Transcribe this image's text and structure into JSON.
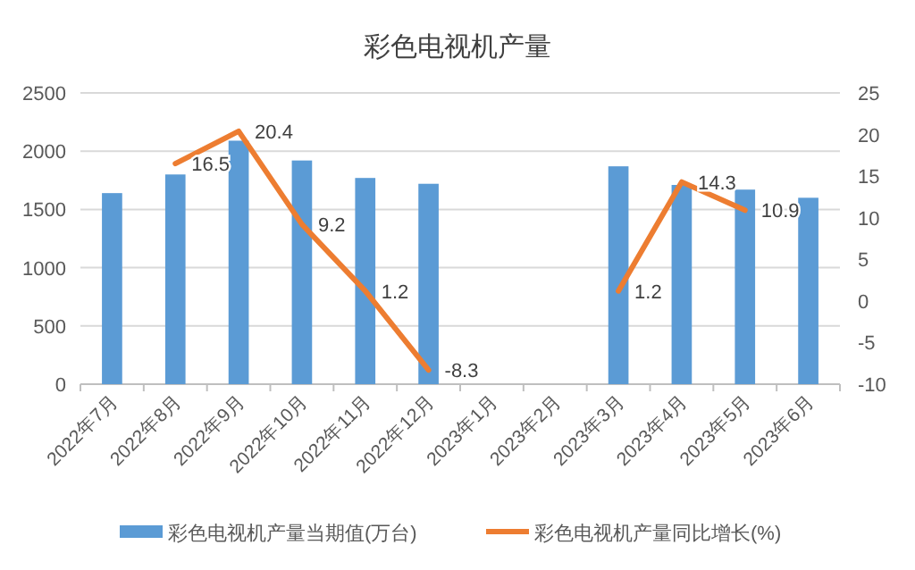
{
  "chart_data": {
    "type": "bar",
    "title": "彩色电视机产量",
    "categories": [
      "2022年7月",
      "2022年8月",
      "2022年9月",
      "2022年10月",
      "2022年11月",
      "2022年12月",
      "2023年1月",
      "2023年2月",
      "2023年3月",
      "2023年4月",
      "2023年5月",
      "2023年6月"
    ],
    "series": [
      {
        "name": "彩色电视机产量当期值(万台)",
        "color": "#5b9bd5",
        "values": [
          1640,
          1800,
          2090,
          1920,
          1770,
          1720,
          null,
          null,
          1870,
          1710,
          1670,
          1600
        ]
      },
      {
        "name": "彩色电视机产量同比增长(%)",
        "type": "line",
        "axis": "y2",
        "color": "#ed7d31",
        "values": [
          null,
          16.5,
          20.4,
          9.2,
          1.2,
          -8.3,
          null,
          null,
          1.2,
          14.3,
          10.9,
          null
        ],
        "value_labels": [
          null,
          "16.5",
          "20.4",
          "9.2",
          "1.2",
          "-8.3",
          null,
          null,
          "1.2",
          "14.3",
          "10.9",
          null
        ]
      }
    ],
    "ylim": [
      0,
      2500
    ],
    "yticks": [
      0,
      500,
      1000,
      1500,
      2000,
      2500
    ],
    "y2lim": [
      -10,
      25
    ],
    "y2ticks": [
      -10,
      -5,
      0,
      5,
      10,
      15,
      20,
      25
    ],
    "grid": "y",
    "legend": "bottom"
  }
}
